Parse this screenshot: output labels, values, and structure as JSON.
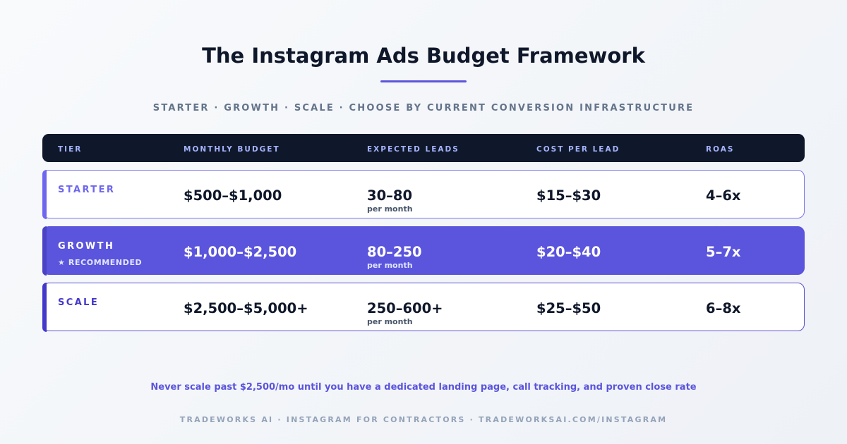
{
  "title": "The Instagram Ads Budget Framework",
  "subtitle": "STARTER · GROWTH · SCALE · CHOOSE BY CURRENT CONVERSION INFRASTRUCTURE",
  "table": {
    "headers": {
      "tier": "TIER",
      "budget": "MONTHLY BUDGET",
      "leads": "EXPECTED LEADS",
      "cpl": "COST PER LEAD",
      "roas": "ROAS"
    },
    "rows": [
      {
        "tier": "STARTER",
        "badge": "",
        "budget": "$500–$1,000",
        "leads": "30–80",
        "leads_unit": "per month",
        "cpl": "$15–$30",
        "roas": "4–6x"
      },
      {
        "tier": "GROWTH",
        "badge": "★ RECOMMENDED",
        "budget": "$1,000–$2,500",
        "leads": "80–250",
        "leads_unit": "per month",
        "cpl": "$20–$40",
        "roas": "5–7x"
      },
      {
        "tier": "SCALE",
        "badge": "",
        "budget": "$2,500–$5,000+",
        "leads": "250–600+",
        "leads_unit": "per month",
        "cpl": "$25–$50",
        "roas": "6–8x"
      }
    ]
  },
  "note": "Never scale past $2,500/mo until you have a dedicated landing page, call tracking, and proven close rate",
  "footer": "TRADEWORKS AI · INSTAGRAM FOR CONTRACTORS · TRADEWORKSAI.COM/INSTAGRAM",
  "colors": {
    "accent": "#5b54dc",
    "header_bg": "#0f172a",
    "header_text": "#a5b4fc",
    "title_text": "#0f172a"
  }
}
